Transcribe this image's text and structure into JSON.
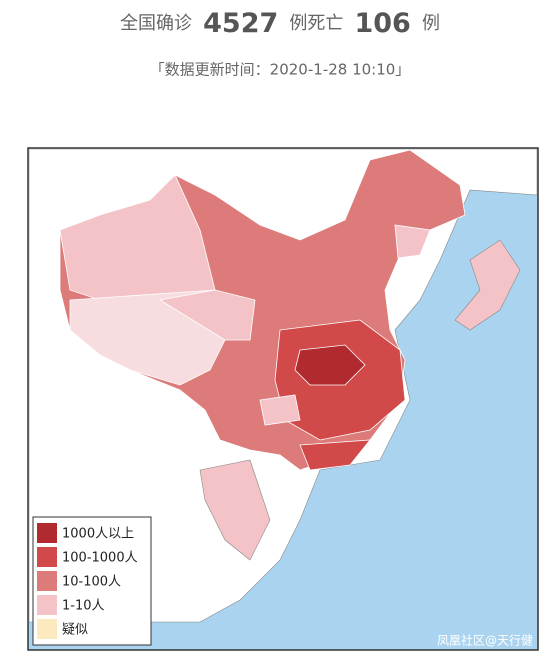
{
  "header": {
    "confirmed_label": "全国确诊",
    "confirmed": 4527,
    "deaths_label": "例死亡",
    "deaths": 106,
    "unit": "例",
    "updated": "「数据更新时间：2020-1-28 10:10」"
  },
  "legend": [
    {
      "label": "1000人以上",
      "color": "#b02a2f"
    },
    {
      "label": "100-1000人",
      "color": "#d2494a"
    },
    {
      "label": "10-100人",
      "color": "#dc7b79"
    },
    {
      "label": "1-10人",
      "color": "#f3c3c8"
    },
    {
      "label": "疑似",
      "color": "#fde9c0"
    }
  ],
  "watermark": "凤凰社区@天行健"
}
